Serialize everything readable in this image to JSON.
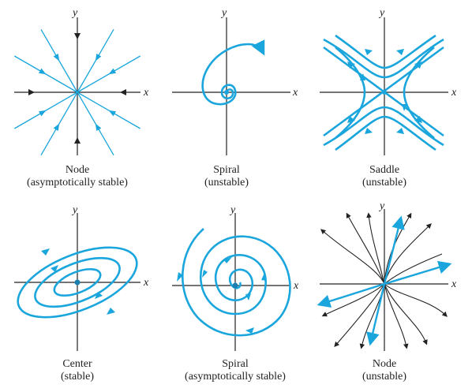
{
  "colors": {
    "curve": "#1aa6dd",
    "axis": "#222222",
    "trajectory_black": "#222222"
  },
  "axis_labels": {
    "x": "x",
    "y": "y"
  },
  "panels": [
    {
      "id": "node-stable",
      "title": "Node",
      "subtitle": "(asymptotically stable)"
    },
    {
      "id": "spiral-unstable",
      "title": "Spiral",
      "subtitle": "(unstable)"
    },
    {
      "id": "saddle",
      "title": "Saddle",
      "subtitle": "(unstable)"
    },
    {
      "id": "center",
      "title": "Center",
      "subtitle": "(stable)"
    },
    {
      "id": "spiral-stable",
      "title": "Spiral",
      "subtitle": "(asymptotically stable)"
    },
    {
      "id": "node-unstable",
      "title": "Node",
      "subtitle": "(unstable)"
    }
  ]
}
